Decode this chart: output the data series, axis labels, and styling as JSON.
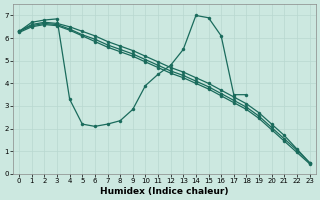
{
  "xlabel": "Humidex (Indice chaleur)",
  "xlim": [
    -0.5,
    23.5
  ],
  "ylim": [
    0,
    7.5
  ],
  "xticks": [
    0,
    1,
    2,
    3,
    4,
    5,
    6,
    7,
    8,
    9,
    10,
    11,
    12,
    13,
    14,
    15,
    16,
    17,
    18,
    19,
    20,
    21,
    22,
    23
  ],
  "yticks": [
    0,
    1,
    2,
    3,
    4,
    5,
    6,
    7
  ],
  "bg_color": "#cce8e0",
  "line_color": "#1a6b5c",
  "lines": [
    {
      "x": [
        0,
        1,
        2,
        3,
        4,
        5,
        6,
        7,
        8,
        9,
        10,
        11,
        12,
        13,
        14,
        15,
        16,
        17,
        18
      ],
      "y": [
        6.3,
        6.7,
        6.8,
        6.85,
        3.3,
        2.2,
        2.1,
        2.2,
        2.35,
        2.85,
        3.9,
        4.4,
        4.8,
        5.5,
        7.0,
        6.9,
        6.1,
        3.5,
        3.5
      ]
    },
    {
      "x": [
        0,
        1,
        2,
        3,
        4,
        5,
        6,
        7,
        8,
        9,
        10,
        11,
        12,
        13,
        14,
        15,
        16,
        17,
        18,
        19,
        20,
        21,
        22,
        23
      ],
      "y": [
        6.3,
        6.6,
        6.7,
        6.65,
        6.5,
        6.3,
        6.1,
        5.85,
        5.65,
        5.45,
        5.2,
        4.95,
        4.7,
        4.5,
        4.25,
        4.0,
        3.7,
        3.4,
        3.1,
        2.7,
        2.2,
        1.7,
        1.1,
        0.5
      ]
    },
    {
      "x": [
        0,
        1,
        2,
        3,
        4,
        5,
        6,
        7,
        8,
        9,
        10,
        11,
        12,
        13,
        14,
        15,
        16,
        17,
        18,
        19,
        20,
        21,
        22,
        23
      ],
      "y": [
        6.3,
        6.55,
        6.65,
        6.6,
        6.4,
        6.15,
        5.95,
        5.7,
        5.5,
        5.3,
        5.05,
        4.8,
        4.55,
        4.35,
        4.1,
        3.85,
        3.55,
        3.25,
        2.95,
        2.55,
        2.05,
        1.55,
        1.05,
        0.5
      ]
    },
    {
      "x": [
        0,
        1,
        2,
        3,
        4,
        5,
        6,
        7,
        8,
        9,
        10,
        11,
        12,
        13,
        14,
        15,
        16,
        17,
        18,
        19,
        20,
        21,
        22,
        23
      ],
      "y": [
        6.25,
        6.5,
        6.6,
        6.55,
        6.35,
        6.1,
        5.85,
        5.6,
        5.4,
        5.2,
        4.95,
        4.7,
        4.45,
        4.25,
        4.0,
        3.75,
        3.45,
        3.15,
        2.85,
        2.45,
        1.95,
        1.45,
        0.95,
        0.45
      ]
    }
  ]
}
